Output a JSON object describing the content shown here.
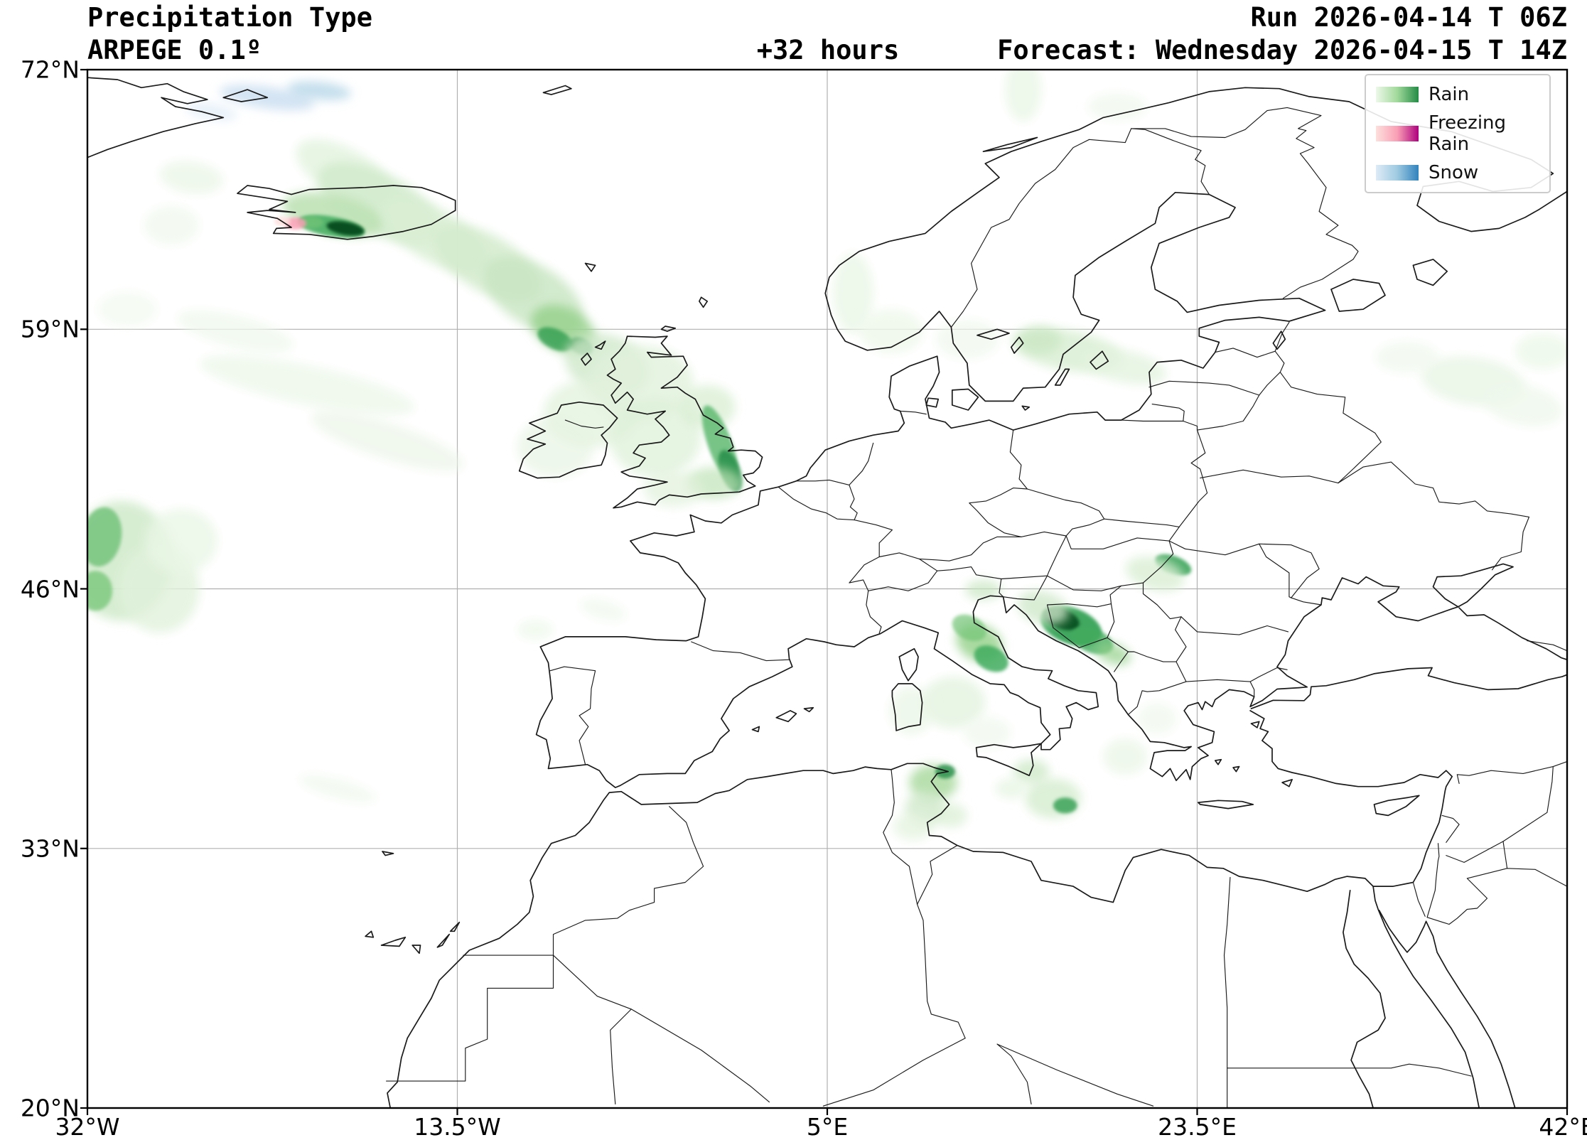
{
  "header": {
    "title": "Precipitation Type",
    "model": "ARPEGE 0.1º",
    "lead_time": "+32 hours",
    "run": "Run 2026-04-14 T 06Z",
    "forecast": "Forecast: Wednesday 2026-04-15 T 14Z"
  },
  "axes": {
    "lat_ticks": [
      {
        "label": "72°N",
        "value": 72
      },
      {
        "label": "59°N",
        "value": 59
      },
      {
        "label": "46°N",
        "value": 46
      },
      {
        "label": "33°N",
        "value": 33
      },
      {
        "label": "20°N",
        "value": 20
      }
    ],
    "lon_ticks": [
      {
        "label": "32°W",
        "value": -32
      },
      {
        "label": "13.5°W",
        "value": -13.5
      },
      {
        "label": "5°E",
        "value": 5
      },
      {
        "label": "23.5°E",
        "value": 23.5
      },
      {
        "label": "42°E",
        "value": 42
      }
    ]
  },
  "legend": {
    "items": [
      {
        "label": "Rain",
        "colors": [
          "#edf8e9",
          "#a1d99b",
          "#238b45"
        ]
      },
      {
        "label": "Freezing Rain",
        "colors": [
          "#fde0dd",
          "#fa9fb5",
          "#ae017e"
        ]
      },
      {
        "label": "Snow",
        "colors": [
          "#deebf7",
          "#9ecae1",
          "#3182bd"
        ]
      }
    ]
  },
  "map": {
    "extent": {
      "lon_min": -32,
      "lon_max": 42,
      "lat_min": 20,
      "lat_max": 72
    },
    "grid_color": "#b0b0b0",
    "coast_color": "#1a1a1a",
    "precip_features_fields": [
      "type",
      "lon",
      "lat",
      "rx_deg",
      "ry_deg",
      "rotation_deg",
      "color",
      "opacity",
      "sharp"
    ],
    "precip_features": [
      [
        "snow",
        -23.0,
        70.6,
        2.4,
        0.55,
        8,
        "#c6dbef",
        0.75,
        0
      ],
      [
        "snow",
        -20.4,
        70.95,
        1.6,
        0.45,
        6,
        "#9ecae1",
        0.6,
        0
      ],
      [
        "snow",
        -25.8,
        69.9,
        1.3,
        0.4,
        10,
        "#deebf7",
        0.7,
        0
      ],
      [
        "rain",
        -19.2,
        66.9,
        2.6,
        1.2,
        28,
        "#e4f3df",
        0.85,
        0
      ],
      [
        "rain",
        -17.4,
        65.3,
        3.4,
        1.5,
        28,
        "#d3ebcd",
        0.9,
        0
      ],
      [
        "rain",
        -19.7,
        64.75,
        2.6,
        1.0,
        12,
        "#bfe2b6",
        0.9,
        0
      ],
      [
        "rain",
        -19.8,
        64.15,
        1.7,
        0.5,
        10,
        "#41ab5d",
        0.85,
        1
      ],
      [
        "rain",
        -19.1,
        64.05,
        0.95,
        0.33,
        10,
        "#00441b",
        0.9,
        1
      ],
      [
        "rain",
        -20.8,
        64.35,
        0.6,
        0.3,
        0,
        "#74c476",
        0.7,
        1
      ],
      [
        "freezing_rain",
        -21.6,
        64.3,
        0.55,
        0.3,
        0,
        "#fa9fb5",
        0.85,
        1
      ],
      [
        "freezing_rain",
        -22.25,
        64.4,
        0.4,
        0.24,
        0,
        "#fde0dd",
        0.85,
        1
      ],
      [
        "rain",
        -14.6,
        63.7,
        3.0,
        1.3,
        30,
        "#d9eed3",
        0.85,
        0
      ],
      [
        "rain",
        -12.0,
        62.3,
        3.0,
        1.4,
        30,
        "#d3ebcd",
        0.85,
        0
      ],
      [
        "rain",
        -9.7,
        60.7,
        2.8,
        1.5,
        32,
        "#c7e5c0",
        0.8,
        0
      ],
      [
        "rain",
        -8.2,
        59.0,
        1.7,
        1.1,
        25,
        "#93d089",
        0.8,
        0
      ],
      [
        "rain",
        -8.6,
        58.5,
        0.95,
        0.5,
        25,
        "#2f9e4f",
        0.8,
        1
      ],
      [
        "rain",
        -7.3,
        58.15,
        0.6,
        0.4,
        25,
        "#238b45",
        0.7,
        1
      ],
      [
        "rain",
        -6.0,
        57.2,
        2.2,
        1.5,
        20,
        "#d0e9ca",
        0.8,
        0
      ],
      [
        "rain",
        -4.3,
        56.3,
        2.6,
        1.9,
        0,
        "#e1f1dc",
        0.8,
        0
      ],
      [
        "rain",
        -6.8,
        54.8,
        2.4,
        1.7,
        0,
        "#e1f1dc",
        0.75,
        0
      ],
      [
        "rain",
        -8.6,
        53.1,
        1.9,
        1.5,
        0,
        "#e7f4e2",
        0.7,
        0
      ],
      [
        "rain",
        -3.6,
        53.6,
        2.3,
        2.0,
        0,
        "#def0d8",
        0.75,
        0
      ],
      [
        "rain",
        -1.0,
        55.1,
        1.4,
        1.1,
        0,
        "#d5ecce",
        0.7,
        0
      ],
      [
        "rain",
        -0.35,
        53.2,
        2.1,
        0.6,
        70,
        "#5fba71",
        0.85,
        1
      ],
      [
        "rain",
        0.15,
        51.9,
        1.1,
        0.5,
        70,
        "#238b45",
        0.8,
        1
      ],
      [
        "rain",
        -0.7,
        51.3,
        1.4,
        0.8,
        0,
        "#bfe2b6",
        0.7,
        0
      ],
      [
        "rain",
        -2.7,
        51.0,
        1.5,
        0.9,
        0,
        "#e1f1dc",
        0.7,
        0
      ],
      [
        "rain",
        -30.3,
        47.4,
        2.6,
        3.0,
        0,
        "#d3ebcd",
        0.9,
        0
      ],
      [
        "rain",
        -31.3,
        48.6,
        1.0,
        1.5,
        10,
        "#6ec077",
        0.8,
        1
      ],
      [
        "rain",
        -31.6,
        45.9,
        0.85,
        1.0,
        0,
        "#74c476",
        0.75,
        1
      ],
      [
        "rain",
        -28.4,
        46.0,
        2.0,
        2.2,
        0,
        "#e1f1dc",
        0.8,
        0
      ],
      [
        "rain",
        -27.3,
        48.4,
        1.8,
        1.6,
        0,
        "#eaf6e6",
        0.8,
        0
      ],
      [
        "rain",
        -21.0,
        56.2,
        5.5,
        1.0,
        12,
        "#eff8ec",
        0.85,
        0
      ],
      [
        "rain",
        -17.0,
        53.4,
        4.0,
        0.9,
        18,
        "#ecf6e8",
        0.75,
        0
      ],
      [
        "rain",
        -24.6,
        58.9,
        3.0,
        0.8,
        14,
        "#eff8ec",
        0.75,
        0
      ],
      [
        "rain",
        6.3,
        60.8,
        1.0,
        2.0,
        0,
        "#eaf6e6",
        0.8,
        0
      ],
      [
        "rain",
        8.2,
        58.9,
        1.6,
        1.1,
        0,
        "#edf7ea",
        0.8,
        0
      ],
      [
        "rain",
        12.0,
        58.5,
        1.6,
        1.0,
        0,
        "#eff8ec",
        0.7,
        0
      ],
      [
        "rain",
        17.0,
        57.95,
        2.8,
        1.0,
        10,
        "#d9eed3",
        0.85,
        0
      ],
      [
        "rain",
        19.8,
        57.15,
        2.2,
        0.8,
        12,
        "#e4f3df",
        0.8,
        0
      ],
      [
        "rain",
        15.6,
        58.45,
        1.1,
        0.7,
        0,
        "#c7e5c0",
        0.7,
        0
      ],
      [
        "rain",
        14.8,
        71.0,
        0.9,
        1.6,
        0,
        "#eaf6e6",
        0.8,
        0
      ],
      [
        "rain",
        19.5,
        70.15,
        1.5,
        0.7,
        0,
        "#eff8ec",
        0.7,
        0
      ],
      [
        "rain",
        37.3,
        56.4,
        2.6,
        1.2,
        8,
        "#eaf6e6",
        0.85,
        0
      ],
      [
        "rain",
        39.8,
        55.2,
        2.0,
        1.0,
        12,
        "#eff8ec",
        0.8,
        0
      ],
      [
        "rain",
        34.0,
        57.6,
        1.6,
        0.8,
        0,
        "#eff8ec",
        0.7,
        0
      ],
      [
        "rain",
        40.8,
        57.9,
        1.4,
        0.9,
        0,
        "#eaf6e6",
        0.7,
        0
      ],
      [
        "rain",
        22.3,
        47.2,
        0.95,
        0.45,
        20,
        "#2f9e4f",
        0.85,
        1
      ],
      [
        "rain",
        21.4,
        46.75,
        1.5,
        0.8,
        15,
        "#d9eed3",
        0.8,
        0
      ],
      [
        "rain",
        12.8,
        45.95,
        0.9,
        0.5,
        0,
        "#c7e5c0",
        0.7,
        0
      ],
      [
        "rain",
        12.6,
        43.3,
        1.2,
        0.9,
        25,
        "#9ad48f",
        0.85,
        0
      ],
      [
        "rain",
        13.2,
        42.5,
        0.9,
        0.6,
        25,
        "#41ab5d",
        0.85,
        1
      ],
      [
        "rain",
        12.1,
        44.05,
        0.9,
        0.6,
        25,
        "#74c476",
        0.7,
        1
      ],
      [
        "rain",
        17.2,
        44.15,
        1.6,
        0.9,
        20,
        "#2f9e4f",
        0.9,
        1
      ],
      [
        "rain",
        16.7,
        44.5,
        0.95,
        0.5,
        20,
        "#00441b",
        0.85,
        1
      ],
      [
        "rain",
        18.25,
        43.4,
        1.1,
        0.6,
        20,
        "#41ab5d",
        0.8,
        1
      ],
      [
        "rain",
        19.3,
        42.75,
        0.9,
        0.5,
        20,
        "#93d089",
        0.7,
        0
      ],
      [
        "rain",
        15.8,
        45.05,
        1.3,
        0.8,
        15,
        "#d0e9ca",
        0.8,
        0
      ],
      [
        "rain",
        11.3,
        40.3,
        1.6,
        1.3,
        0,
        "#e4f3df",
        0.8,
        0
      ],
      [
        "rain",
        9.2,
        39.9,
        1.1,
        1.2,
        0,
        "#eaf6e6",
        0.75,
        0
      ],
      [
        "rain",
        13.0,
        38.8,
        1.2,
        0.8,
        0,
        "#eff8ec",
        0.7,
        0
      ],
      [
        "rain",
        10.3,
        36.3,
        1.2,
        0.9,
        0,
        "#abdaa1",
        0.85,
        0
      ],
      [
        "rain",
        10.9,
        36.85,
        0.5,
        0.35,
        0,
        "#238b45",
        0.8,
        1
      ],
      [
        "rain",
        9.9,
        35.0,
        1.0,
        0.9,
        0,
        "#d0e9ca",
        0.8,
        0
      ],
      [
        "rain",
        9.3,
        34.1,
        1.0,
        0.7,
        0,
        "#e4f3df",
        0.75,
        0
      ],
      [
        "rain",
        11.2,
        34.65,
        0.8,
        0.6,
        0,
        "#d9eed3",
        0.7,
        0
      ],
      [
        "rain",
        16.3,
        35.5,
        1.4,
        1.0,
        0,
        "#d5ecce",
        0.8,
        0
      ],
      [
        "rain",
        16.9,
        35.15,
        0.6,
        0.4,
        0,
        "#2f9e4f",
        0.8,
        1
      ],
      [
        "rain",
        15.2,
        36.85,
        0.9,
        0.6,
        0,
        "#c7e5c0",
        0.7,
        0
      ],
      [
        "rain",
        14.2,
        36.0,
        0.8,
        0.5,
        0,
        "#e4f3df",
        0.7,
        0
      ],
      [
        "rain",
        19.9,
        37.6,
        1.1,
        0.9,
        0,
        "#eaf6e6",
        0.75,
        0
      ],
      [
        "rain",
        21.5,
        39.5,
        1.0,
        0.8,
        0,
        "#eff8ec",
        0.7,
        0
      ],
      [
        "rain",
        -6.2,
        44.95,
        1.2,
        0.5,
        15,
        "#eff8ec",
        0.7,
        0
      ],
      [
        "rain",
        -9.6,
        43.95,
        0.9,
        0.5,
        0,
        "#eaf6e6",
        0.6,
        0
      ],
      [
        "rain",
        -26.8,
        66.6,
        1.6,
        0.8,
        8,
        "#eaf6e6",
        0.75,
        0
      ],
      [
        "rain",
        -27.8,
        64.2,
        1.4,
        1.0,
        0,
        "#eff8ec",
        0.7,
        0
      ],
      [
        "rain",
        -30.0,
        60.0,
        1.5,
        0.9,
        0,
        "#f2f9ef",
        0.7,
        0
      ],
      [
        "rain",
        -19.5,
        36.0,
        2.0,
        0.5,
        15,
        "#eff8ec",
        0.7,
        0
      ]
    ]
  }
}
